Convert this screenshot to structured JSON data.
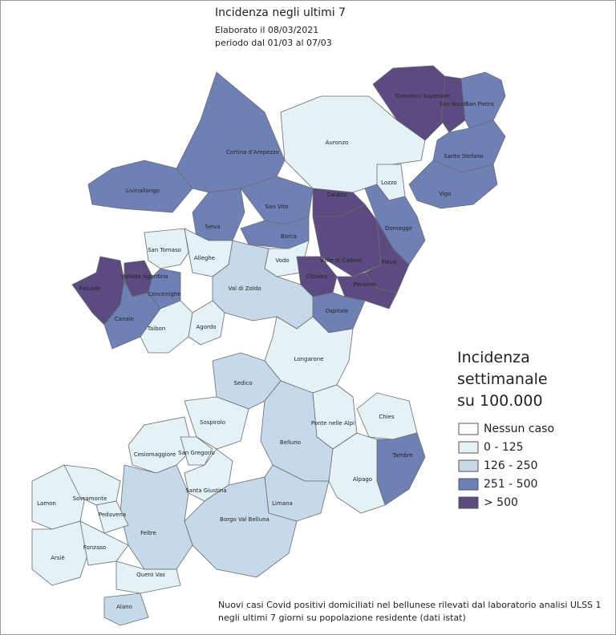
{
  "header": {
    "title": "Incidenza  negli  ultimi  7",
    "subtitle": "Elaborato il 08/03/2021",
    "period": "periodo  dal 01/03 al 07/03"
  },
  "legend": {
    "title": [
      "Incidenza",
      "settimanale",
      "su 100.000"
    ],
    "classes": [
      {
        "label": "Nessun caso",
        "color": "#ffffff"
      },
      {
        "label": "0 - 125",
        "color": "#e4f1f6"
      },
      {
        "label": "126 - 250",
        "color": "#c6d9ea"
      },
      {
        "label": "251 - 500",
        "color": "#6e80b6"
      },
      {
        "label": "> 500",
        "color": "#5c4b80"
      }
    ]
  },
  "municipalities": [
    {
      "name": "Comelico Superiore",
      "class": 4
    },
    {
      "name": "San Nicolò",
      "class": 4
    },
    {
      "name": "San Pietro",
      "class": 3
    },
    {
      "name": "Santo Stefano",
      "class": 3
    },
    {
      "name": "Vigo",
      "class": 3
    },
    {
      "name": "Auronzo",
      "class": 1
    },
    {
      "name": "Lozzo",
      "class": 1
    },
    {
      "name": "Cortina d'Ampezzo",
      "class": 3
    },
    {
      "name": "Livinallongo",
      "class": 3
    },
    {
      "name": "San Vito",
      "class": 3
    },
    {
      "name": "Selva",
      "class": 3
    },
    {
      "name": "Calalzo",
      "class": 4
    },
    {
      "name": "Domegge",
      "class": 3
    },
    {
      "name": "Borca",
      "class": 3
    },
    {
      "name": "Vodo",
      "class": 1
    },
    {
      "name": "Valle di Cadore",
      "class": 4
    },
    {
      "name": "Pieve",
      "class": 4
    },
    {
      "name": "Cibiana",
      "class": 4
    },
    {
      "name": "Perarolo",
      "class": 4
    },
    {
      "name": "Ospitale",
      "class": 3
    },
    {
      "name": "San Tomaso",
      "class": 1
    },
    {
      "name": "Alleghe",
      "class": 1
    },
    {
      "name": "Val di Zoldo",
      "class": 2
    },
    {
      "name": "Falcade",
      "class": 4
    },
    {
      "name": "Vallada Agordina",
      "class": 4
    },
    {
      "name": "Cencenighe",
      "class": 3
    },
    {
      "name": "Canale",
      "class": 3
    },
    {
      "name": "Taibon",
      "class": 1
    },
    {
      "name": "Agordo",
      "class": 1
    },
    {
      "name": "Longarone",
      "class": 1
    },
    {
      "name": "Sedico",
      "class": 2
    },
    {
      "name": "Sospirolo",
      "class": 1
    },
    {
      "name": "Ponte nelle Alpi",
      "class": 1
    },
    {
      "name": "Chies",
      "class": 1
    },
    {
      "name": "Belluno",
      "class": 2
    },
    {
      "name": "Tambre",
      "class": 3
    },
    {
      "name": "Alpago",
      "class": 1
    },
    {
      "name": "Cesiomaggiore",
      "class": 1
    },
    {
      "name": "San Gregorio",
      "class": 1
    },
    {
      "name": "Santa Giustina",
      "class": 1
    },
    {
      "name": "Limana",
      "class": 2
    },
    {
      "name": "Borgo Val Belluna",
      "class": 2
    },
    {
      "name": "Feltre",
      "class": 2
    },
    {
      "name": "Lamon",
      "class": 1
    },
    {
      "name": "Sovramonte",
      "class": 1
    },
    {
      "name": "Pedavena",
      "class": 1
    },
    {
      "name": "Arsiè",
      "class": 1
    },
    {
      "name": "Fonzaso",
      "class": 1
    },
    {
      "name": "Quero Vas",
      "class": 1
    },
    {
      "name": "Alano",
      "class": 2
    }
  ],
  "footnote": [
    "Nuovi casi Covid positivi domiciliati nel bellunese rilevati dal laboratorio analisi ULSS 1",
    "negli ultimi 7 giorni su popolazione residente (dati istat)"
  ]
}
